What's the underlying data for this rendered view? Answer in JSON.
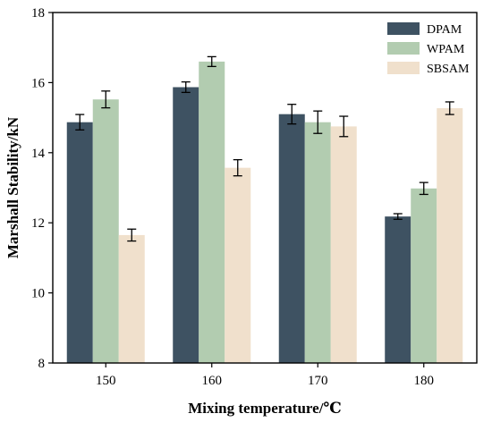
{
  "chart_data": {
    "type": "bar",
    "xlabel": "Mixing temperature/℃",
    "ylabel": "Marshall Stability/kN",
    "categories": [
      "150",
      "160",
      "170",
      "180"
    ],
    "ylim": [
      8,
      18
    ],
    "yticks": [
      8,
      10,
      12,
      14,
      16,
      18
    ],
    "legend_position": "top-right",
    "series": [
      {
        "name": "DPAM",
        "color": "#3e5262",
        "values": [
          14.87,
          15.87,
          15.1,
          12.18
        ],
        "errors": [
          0.22,
          0.15,
          0.28,
          0.08
        ]
      },
      {
        "name": "WPAM",
        "color": "#b2ccb0",
        "values": [
          15.52,
          16.6,
          14.87,
          12.98
        ],
        "errors": [
          0.24,
          0.14,
          0.32,
          0.17
        ]
      },
      {
        "name": "SBSAM",
        "color": "#f0e0cc",
        "values": [
          11.65,
          13.57,
          14.75,
          15.27
        ],
        "errors": [
          0.17,
          0.23,
          0.29,
          0.18
        ]
      }
    ]
  }
}
